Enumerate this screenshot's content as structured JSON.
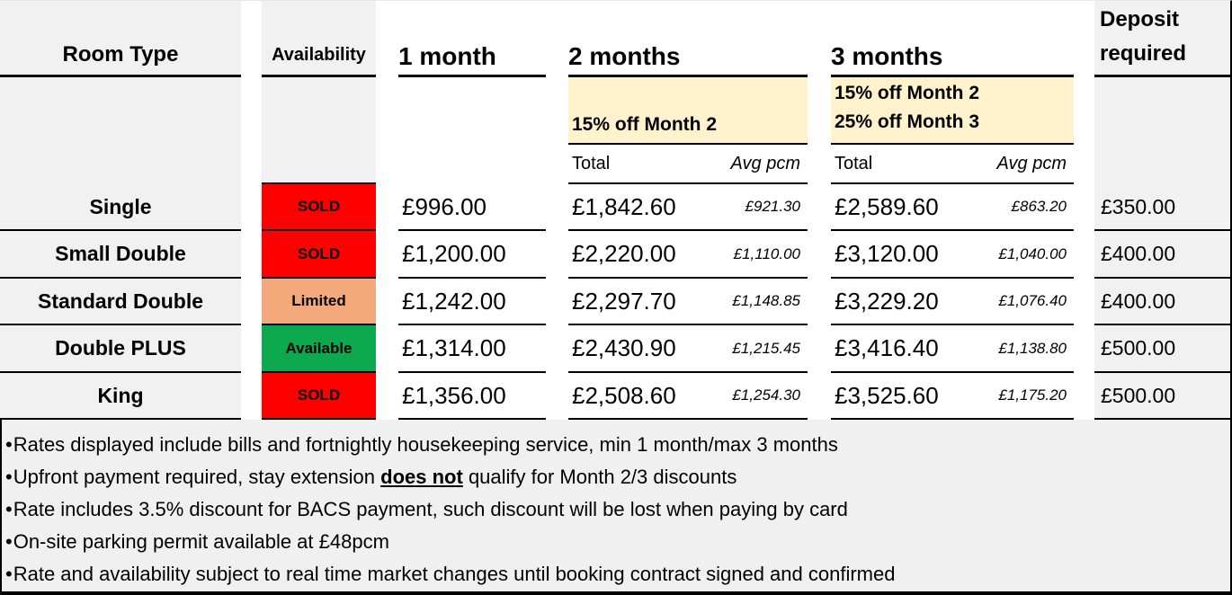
{
  "table": {
    "headers": {
      "room_type": "Room Type",
      "availability": "Availability",
      "one_month": "1 month",
      "two_months": "2 months",
      "three_months": "3 months",
      "deposit": "Deposit required",
      "discount_2m": "15% off Month 2",
      "discount_3m_line1": "15% off Month 2",
      "discount_3m_line2": "25% off Month 3",
      "total_label": "Total",
      "avg_label": "Avg pcm"
    },
    "rows": [
      {
        "room": "Single",
        "status": "SOLD",
        "status_color": "#FF0000",
        "m1": "£996.00",
        "m2_total": "£1,842.60",
        "m2_avg": "£921.30",
        "m3_total": "£2,589.60",
        "m3_avg": "£863.20",
        "deposit": "£350.00"
      },
      {
        "room": "Small Double",
        "status": "SOLD",
        "status_color": "#FF0000",
        "m1": "£1,200.00",
        "m2_total": "£2,220.00",
        "m2_avg": "£1,110.00",
        "m3_total": "£3,120.00",
        "m3_avg": "£1,040.00",
        "deposit": "£400.00"
      },
      {
        "room": "Standard Double",
        "status": "Limited",
        "status_color": "#F4A97C",
        "m1": "£1,242.00",
        "m2_total": "£2,297.70",
        "m2_avg": "£1,148.85",
        "m3_total": "£3,229.20",
        "m3_avg": "£1,076.40",
        "deposit": "£400.00"
      },
      {
        "room": "Double PLUS",
        "status": "Available",
        "status_color": "#0CA94F",
        "m1": "£1,314.00",
        "m2_total": "£2,430.90",
        "m2_avg": "£1,215.45",
        "m3_total": "£3,416.40",
        "m3_avg": "£1,138.80",
        "deposit": "£500.00"
      },
      {
        "room": "King",
        "status": "SOLD",
        "status_color": "#FF0000",
        "m1": "£1,356.00",
        "m2_total": "£2,508.60",
        "m2_avg": "£1,254.30",
        "m3_total": "£3,525.60",
        "m3_avg": "£1,175.20",
        "deposit": "£500.00"
      }
    ]
  },
  "notes": [
    {
      "prefix": "Rates displayed include bills and fortnightly housekeeping service, min 1 month/max 3 months",
      "emphasis": "",
      "suffix": ""
    },
    {
      "prefix": "Upfront payment required, stay extension ",
      "emphasis": "does not",
      "suffix": " qualify for Month 2/3 discounts"
    },
    {
      "prefix": "Rate includes 3.5% discount for BACS payment, such discount will be lost when paying by card",
      "emphasis": "",
      "suffix": ""
    },
    {
      "prefix": "On-site parking permit available at £48pcm",
      "emphasis": "",
      "suffix": ""
    },
    {
      "prefix": "Rate and availability subject to real time market changes until booking contract signed and confirmed",
      "emphasis": "",
      "suffix": ""
    }
  ],
  "colors": {
    "sold_red": "#FF0000",
    "limited_orange": "#F4A97C",
    "available_green": "#0CA94F",
    "header_gray": "#F1F1F1",
    "discount_cream": "#FFF2CC",
    "notes_bg": "#F0F0F0"
  }
}
